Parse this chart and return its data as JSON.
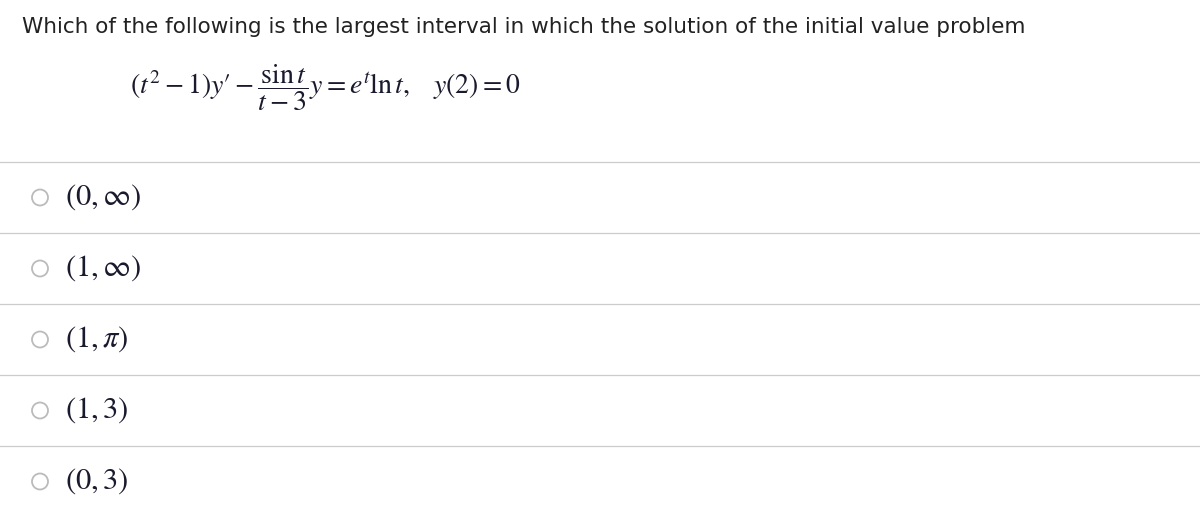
{
  "title": "Which of the following is the largest interval in which the solution of the initial value problem",
  "options": [
    "$(0, \\infty)$",
    "$(1, \\infty)$",
    "$(1, \\pi)$",
    "$(1, 3)$",
    "$(0, 3)$"
  ],
  "background_color": "#ffffff",
  "text_color": "#1a1a2e",
  "title_color": "#222222",
  "line_color": "#cccccc",
  "radio_color": "#bbbbbb",
  "title_fontsize": 15.5,
  "equation_fontsize": 20,
  "option_fontsize": 22
}
